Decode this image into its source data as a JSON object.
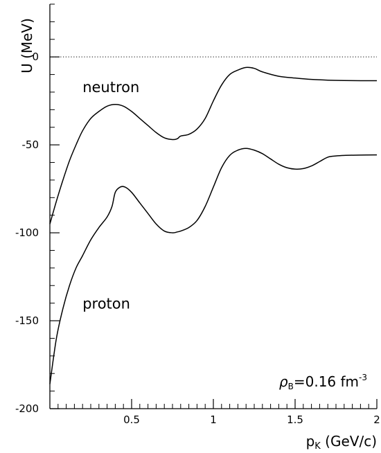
{
  "chart_data": {
    "type": "line",
    "title": "",
    "xlabel": {
      "base": "p",
      "sub": "K",
      "rest": " (GeV/c)"
    },
    "ylabel": "U (MeV)",
    "xlim": [
      0,
      2
    ],
    "ylim": [
      -200,
      30
    ],
    "x_ticks": [
      0.5,
      1,
      1.5,
      2
    ],
    "x_tick_labels": [
      "0.5",
      "1",
      "1.5",
      "2"
    ],
    "y_ticks": [
      0,
      -50,
      -100,
      -150,
      -200
    ],
    "y_tick_labels": [
      "0",
      "-50",
      "-100",
      "-150",
      "-200"
    ],
    "reference_line": {
      "y": 0,
      "style": "dotted"
    },
    "annotation": {
      "rho": "ρ",
      "sub": "B",
      "value": "=0.16  fm",
      "sup": "-3"
    },
    "series": [
      {
        "name": "neutron",
        "label_position": [
          0.2,
          -20
        ],
        "x": [
          0.0,
          0.04,
          0.08,
          0.12,
          0.16,
          0.2,
          0.25,
          0.3,
          0.35,
          0.4,
          0.45,
          0.5,
          0.55,
          0.6,
          0.65,
          0.7,
          0.75,
          0.78,
          0.8,
          0.85,
          0.9,
          0.95,
          1.0,
          1.05,
          1.1,
          1.15,
          1.2,
          1.25,
          1.3,
          1.4,
          1.5,
          1.6,
          1.7,
          1.8,
          1.9,
          2.0
        ],
        "y": [
          -95,
          -82,
          -70,
          -59,
          -50,
          -42,
          -35,
          -31,
          -28,
          -27,
          -28,
          -31,
          -35,
          -39,
          -43,
          -46,
          -47,
          -46.5,
          -45,
          -44,
          -41,
          -35,
          -25,
          -16,
          -10,
          -7.5,
          -6,
          -6.5,
          -8.5,
          -11,
          -12,
          -12.8,
          -13.2,
          -13.4,
          -13.5,
          -13.5
        ]
      },
      {
        "name": "proton",
        "label_position": [
          0.2,
          -143
        ],
        "x": [
          0.0,
          0.04,
          0.08,
          0.12,
          0.16,
          0.2,
          0.25,
          0.3,
          0.35,
          0.38,
          0.4,
          0.43,
          0.46,
          0.5,
          0.55,
          0.6,
          0.65,
          0.7,
          0.75,
          0.78,
          0.8,
          0.85,
          0.9,
          0.95,
          1.0,
          1.05,
          1.1,
          1.15,
          1.2,
          1.25,
          1.3,
          1.35,
          1.4,
          1.45,
          1.5,
          1.55,
          1.6,
          1.65,
          1.7,
          1.75,
          1.8,
          1.9,
          2.0
        ],
        "y": [
          -186,
          -160,
          -143,
          -130,
          -120,
          -113,
          -104,
          -97,
          -91,
          -85,
          -77,
          -74,
          -74,
          -77,
          -83,
          -89,
          -95,
          -99,
          -100,
          -99.5,
          -99,
          -97,
          -93,
          -85,
          -74,
          -63,
          -56,
          -53,
          -52,
          -53,
          -55,
          -58,
          -61,
          -63,
          -63.8,
          -63.5,
          -62,
          -59.5,
          -57,
          -56.3,
          -56,
          -55.8,
          -55.7
        ]
      }
    ]
  }
}
